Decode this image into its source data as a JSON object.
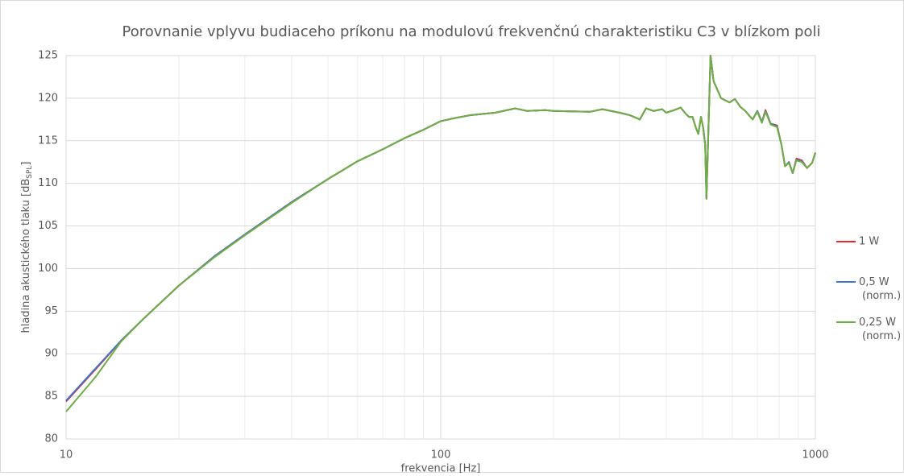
{
  "chart_data": {
    "type": "line",
    "title": "Porovnanie vplyvu budiaceho príkonu na modulovú frekvenčnú charakteristiku C3 v blízkom poli",
    "xlabel": "frekvencia [Hz]",
    "ylabel": [
      "hladina akustického tlaku [dB",
      "SPL",
      "]"
    ],
    "xscale": "log",
    "xlim": [
      10,
      1000
    ],
    "xticks": [
      10,
      100,
      1000
    ],
    "xminor": [
      20,
      30,
      40,
      50,
      60,
      70,
      80,
      90,
      200,
      300,
      400,
      500,
      600,
      700,
      800,
      900
    ],
    "ylim": [
      80,
      125
    ],
    "yticks": [
      80,
      85,
      90,
      95,
      100,
      105,
      110,
      115,
      120,
      125
    ],
    "grid": true,
    "legend": "right",
    "x": [
      10,
      12,
      14,
      16,
      20,
      25,
      30,
      40,
      50,
      60,
      70,
      80,
      90,
      100,
      110,
      120,
      140,
      158,
      170,
      190,
      200,
      250,
      270,
      300,
      320,
      340,
      353,
      370,
      390,
      400,
      420,
      437,
      450,
      460,
      470,
      480,
      487,
      495,
      502,
      508,
      512,
      518,
      525,
      535,
      560,
      590,
      610,
      630,
      650,
      680,
      700,
      720,
      736,
      760,
      790,
      812,
      830,
      850,
      870,
      890,
      920,
      950,
      980,
      1000
    ],
    "series": [
      {
        "name": "1 W",
        "color": "#e8262a",
        "values": [
          84.4,
          88.2,
          91.5,
          94,
          98,
          101.5,
          104,
          107.8,
          110.5,
          112.6,
          114,
          115.3,
          116.3,
          117.3,
          117.7,
          118,
          118.3,
          118.8,
          118.5,
          118.6,
          118.5,
          118.4,
          118.7,
          118.3,
          118,
          117.5,
          118.8,
          118.5,
          118.7,
          118.3,
          118.6,
          118.9,
          118.2,
          117.8,
          117.8,
          116.5,
          115.8,
          117.8,
          116.5,
          114.5,
          108.2,
          116,
          125,
          122,
          120,
          119.5,
          119.9,
          119,
          118.5,
          117.5,
          118.5,
          117.2,
          118.6,
          117,
          116.8,
          114.5,
          112,
          112.5,
          111.2,
          112.9,
          112.7,
          111.8,
          112.4,
          113.6
        ]
      },
      {
        "name": "0,5 W (norm.)",
        "color": "#4472c4",
        "values": [
          84.5,
          88.3,
          91.5,
          94,
          98,
          101.5,
          104,
          107.8,
          110.5,
          112.6,
          114,
          115.3,
          116.3,
          117.3,
          117.7,
          118,
          118.3,
          118.8,
          118.5,
          118.6,
          118.5,
          118.4,
          118.7,
          118.3,
          118,
          117.5,
          118.8,
          118.5,
          118.7,
          118.3,
          118.6,
          118.9,
          118.2,
          117.8,
          117.8,
          116.5,
          115.8,
          117.8,
          116.5,
          114.5,
          108.2,
          116,
          125,
          122,
          120,
          119.5,
          119.9,
          119,
          118.5,
          117.5,
          118.5,
          117.2,
          118.5,
          117,
          116.7,
          114.5,
          112,
          112.5,
          111.2,
          112.8,
          112.6,
          111.8,
          112.4,
          113.6
        ]
      },
      {
        "name": "0,25 W (norm.)",
        "color": "#70ad47",
        "values": [
          83.2,
          87.3,
          91.4,
          94,
          98,
          101.4,
          103.9,
          107.7,
          110.5,
          112.6,
          114,
          115.3,
          116.3,
          117.3,
          117.7,
          118,
          118.3,
          118.8,
          118.5,
          118.6,
          118.5,
          118.4,
          118.7,
          118.3,
          118,
          117.5,
          118.8,
          118.5,
          118.7,
          118.3,
          118.6,
          118.9,
          118.2,
          117.8,
          117.8,
          116.5,
          115.8,
          117.8,
          116.5,
          114.5,
          108.2,
          116,
          125,
          122,
          120,
          119.5,
          119.9,
          119,
          118.5,
          117.5,
          118.4,
          117.1,
          118.4,
          116.9,
          116.6,
          114.5,
          112,
          112.4,
          111.2,
          112.7,
          112.5,
          111.8,
          112.4,
          113.6
        ]
      }
    ]
  }
}
